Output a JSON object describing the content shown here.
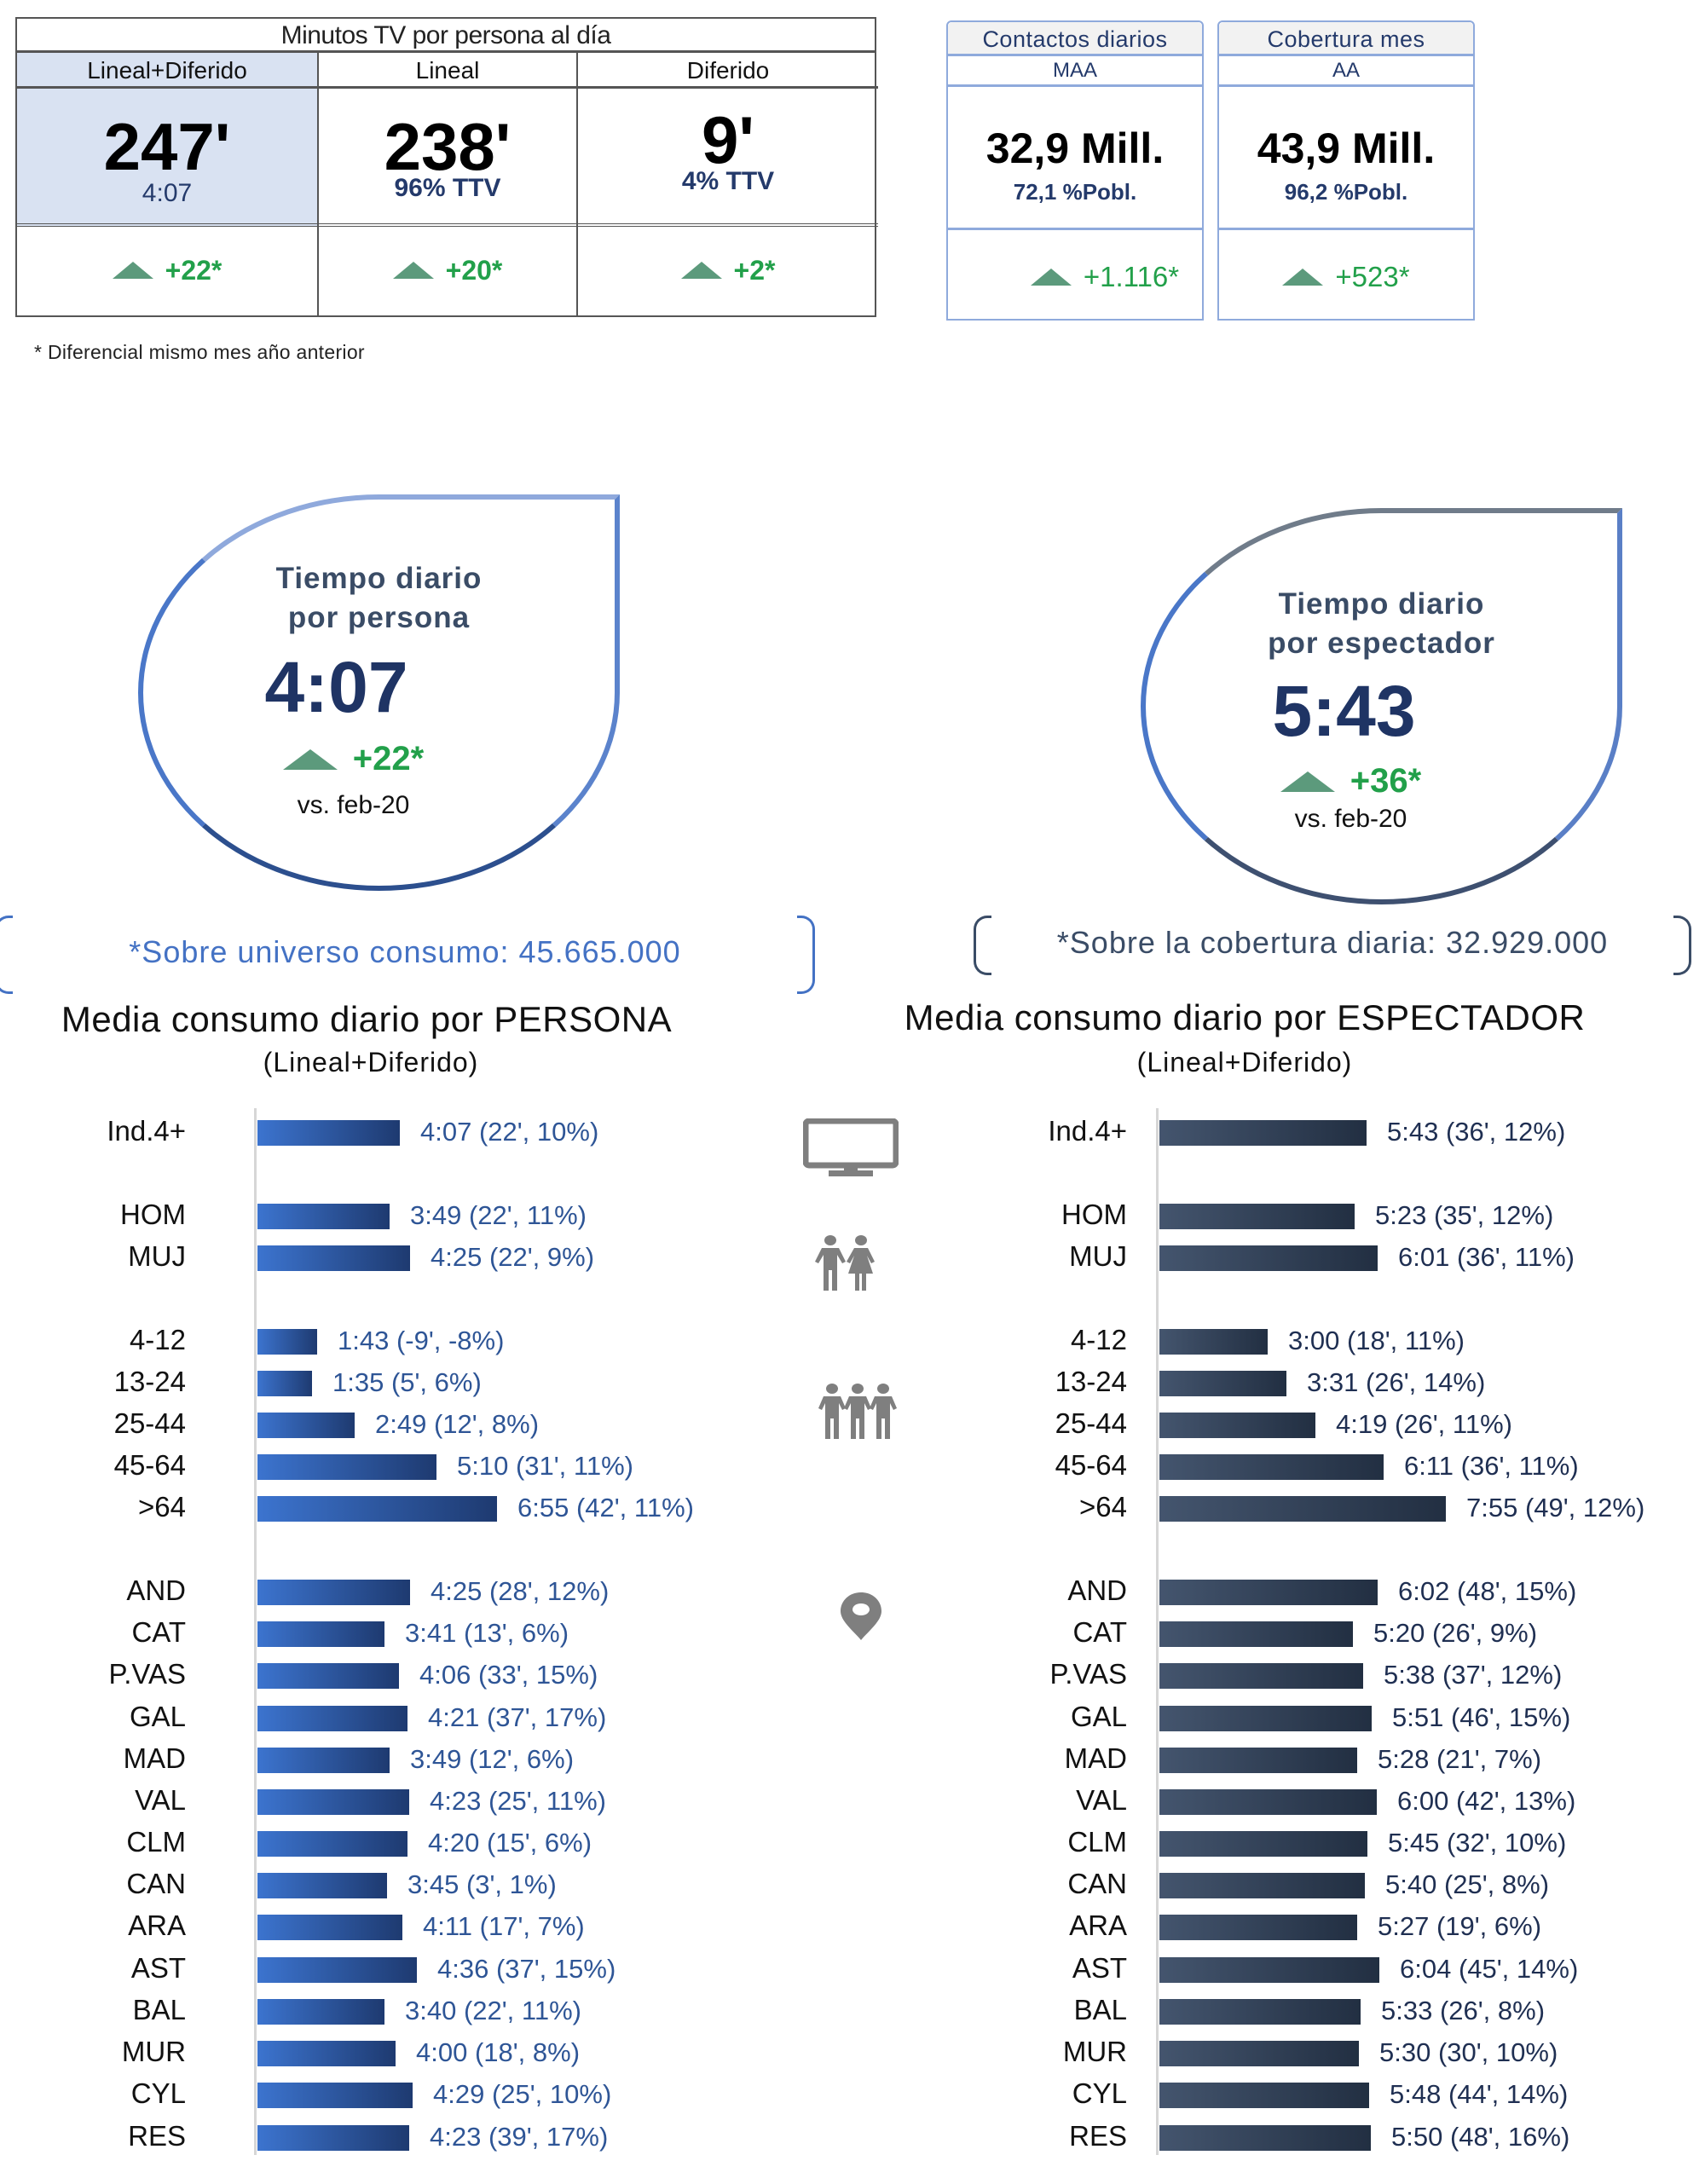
{
  "tv_minutes": {
    "title": "Minutos TV por persona al día",
    "columns": [
      {
        "label": "Lineal+Diferido",
        "value": "247'",
        "sub": "4:07",
        "delta": "+22*"
      },
      {
        "label": "Lineal",
        "value": "238'",
        "sub": "96% TTV",
        "delta": "+20*"
      },
      {
        "label": "Diferido",
        "value": "9'",
        "sub": "4% TTV",
        "delta": "+2*"
      }
    ],
    "footnote": "* Diferencial  mismo mes año anterior"
  },
  "kpis": [
    {
      "title": "Contactos diarios",
      "subtitle": "MAA",
      "value": "32,9 Mill.",
      "pct": "72,1 %Pobl.",
      "delta": "+1.116*"
    },
    {
      "title": "Cobertura mes",
      "subtitle": "AA",
      "value": "43,9 Mill.",
      "pct": "96,2 %Pobl.",
      "delta": "+523*"
    }
  ],
  "drops": {
    "persona": {
      "title_line1": "Tiempo diario",
      "title_line2": "por persona",
      "value": "4:07",
      "delta": "+22*",
      "vs": "vs. feb-20"
    },
    "espectador": {
      "title_line1": "Tiempo diario",
      "title_line2": "por espectador",
      "value": "5:43",
      "delta": "+36*",
      "vs": "vs. feb-20"
    }
  },
  "notes": {
    "left": "*Sobre universo consumo: 45.665.000",
    "right": "*Sobre la cobertura diaria: 32.929.000"
  },
  "sections": {
    "left_title": "Media consumo diario por PERSONA",
    "left_sub": "(Lineal+Diferido)",
    "right_title": "Media consumo diario por ESPECTADOR",
    "right_sub": "(Lineal+Diferido)"
  },
  "icons": [
    "tv-icon",
    "couple-icon",
    "group-icon",
    "location-pin-icon"
  ],
  "colors": {
    "persona_bar_start": "#3c74cf",
    "persona_bar_end": "#1e3a70",
    "espectador_bar_start": "#44556e",
    "espectador_bar_end": "#222f42",
    "delta_green": "#22a04a",
    "triangle_green": "#5c9a7c",
    "highlight_cell": "#d9e2f2"
  },
  "chart_data": [
    {
      "type": "bar",
      "orientation": "horizontal",
      "title": "Media consumo diario por PERSONA",
      "subtitle": "(Lineal+Diferido)",
      "xlabel": "",
      "ylabel": "",
      "unit": "minutes per day",
      "grid": false,
      "categories": [
        "Ind.4+",
        "HOM",
        "MUJ",
        "4-12",
        "13-24",
        "25-44",
        "45-64",
        ">64",
        "AND",
        "CAT",
        "P.VAS",
        "GAL",
        "MAD",
        "VAL",
        "CLM",
        "CAN",
        "ARA",
        "AST",
        "BAL",
        "MUR",
        "CYL",
        "RES"
      ],
      "values": [
        247,
        229,
        265,
        103,
        95,
        169,
        310,
        415,
        265,
        221,
        246,
        261,
        229,
        263,
        260,
        225,
        251,
        276,
        220,
        240,
        269,
        263
      ],
      "labels": [
        "4:07 (22', 10%)",
        "3:49 (22', 11%)",
        "4:25 (22', 9%)",
        "1:43 (-9', -8%)",
        "1:35 (5', 6%)",
        "2:49 (12', 8%)",
        "5:10 (31', 11%)",
        "6:55 (42', 11%)",
        "4:25 (28', 12%)",
        "3:41 (13', 6%)",
        "4:06 (33', 15%)",
        "4:21 (37', 17%)",
        "3:49 (12', 6%)",
        "4:23 (25', 11%)",
        "4:20 (15', 6%)",
        "3:45 (3', 1%)",
        "4:11 (17', 7%)",
        "4:36 (37', 15%)",
        "3:40 (22', 11%)",
        "4:00 (18', 8%)",
        "4:29 (25', 10%)",
        "4:23 (39', 17%)"
      ],
      "diff_minutes": [
        22,
        22,
        22,
        -9,
        5,
        12,
        31,
        42,
        28,
        13,
        33,
        37,
        12,
        25,
        15,
        3,
        17,
        37,
        22,
        18,
        25,
        39
      ],
      "diff_pct": [
        10,
        11,
        9,
        -8,
        6,
        8,
        11,
        11,
        12,
        6,
        15,
        17,
        6,
        11,
        6,
        1,
        7,
        15,
        11,
        8,
        10,
        17
      ]
    },
    {
      "type": "bar",
      "orientation": "horizontal",
      "title": "Media consumo diario por ESPECTADOR",
      "subtitle": "(Lineal+Diferido)",
      "xlabel": "",
      "ylabel": "",
      "unit": "minutes per day",
      "grid": false,
      "categories": [
        "Ind.4+",
        "HOM",
        "MUJ",
        "4-12",
        "13-24",
        "25-44",
        "45-64",
        ">64",
        "AND",
        "CAT",
        "P.VAS",
        "GAL",
        "MAD",
        "VAL",
        "CLM",
        "CAN",
        "ARA",
        "AST",
        "BAL",
        "MUR",
        "CYL",
        "RES"
      ],
      "values": [
        343,
        323,
        361,
        180,
        211,
        259,
        371,
        475,
        362,
        320,
        338,
        351,
        328,
        360,
        345,
        340,
        327,
        364,
        333,
        330,
        348,
        350
      ],
      "labels": [
        "5:43 (36', 12%)",
        "5:23 (35', 12%)",
        "6:01 (36', 11%)",
        "3:00 (18', 11%)",
        "3:31 (26', 14%)",
        "4:19 (26', 11%)",
        "6:11 (36', 11%)",
        "7:55 (49', 12%)",
        "6:02 (48', 15%)",
        "5:20 (26', 9%)",
        "5:38 (37', 12%)",
        "5:51 (46', 15%)",
        "5:28 (21', 7%)",
        "6:00 (42', 13%)",
        "5:45 (32', 10%)",
        "5:40 (25', 8%)",
        "5:27 (19', 6%)",
        "6:04 (45', 14%)",
        "5:33 (26', 8%)",
        "5:30 (30', 10%)",
        "5:48 (44', 14%)",
        "5:50 (48', 16%)"
      ],
      "diff_minutes": [
        36,
        35,
        36,
        18,
        26,
        26,
        36,
        49,
        48,
        26,
        37,
        46,
        21,
        42,
        32,
        25,
        19,
        45,
        26,
        30,
        44,
        48
      ],
      "diff_pct": [
        12,
        12,
        11,
        11,
        14,
        11,
        11,
        12,
        15,
        9,
        12,
        15,
        7,
        13,
        10,
        8,
        6,
        14,
        8,
        10,
        14,
        16
      ]
    }
  ]
}
